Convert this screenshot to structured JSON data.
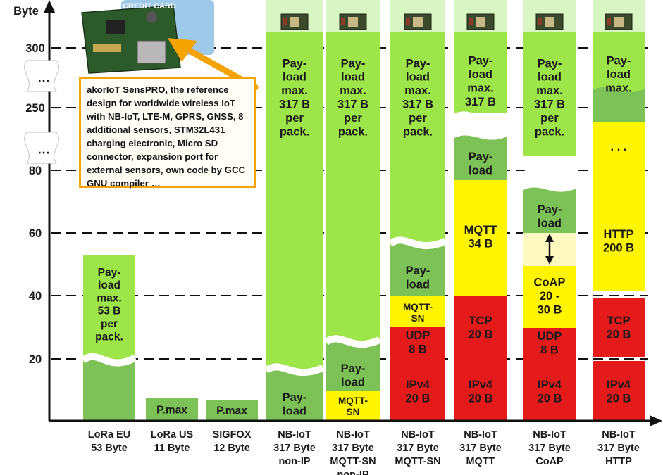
{
  "chart_data": {
    "type": "bar",
    "ylabel": "Byte",
    "y_ticks": [
      "300",
      "250",
      "80",
      "60",
      "40",
      "20"
    ],
    "break_marker": "…",
    "image_label": "CREDIT CARD",
    "callout": "akorIoT SensPRO, the reference design for worldwide wireless IoT with NB-IoT, LTE-M, GPRS, GNSS, 8 additional sensors, STM32L431 charging electronic, Micro SD connector, expansion port for external sensors, own code by GCC GNU compiler …",
    "categories": [
      {
        "name": "LoRa EU",
        "size": "53 Byte"
      },
      {
        "name": "LoRa US",
        "size": "11 Byte"
      },
      {
        "name": "SIGFOX",
        "size": "12 Byte"
      },
      {
        "name": "NB-IoT",
        "size": "317 Byte",
        "variant": "non-IP"
      },
      {
        "name": "NB-IoT",
        "size": "317 Byte",
        "variant": "MQTT-SN non-IP"
      },
      {
        "name": "NB-IoT",
        "size": "317 Byte",
        "variant": "MQTT-SN"
      },
      {
        "name": "NB-IoT",
        "size": "317 Byte",
        "variant": "MQTT"
      },
      {
        "name": "NB-IoT",
        "size": "317 Byte",
        "variant": "CoAP"
      },
      {
        "name": "NB-IoT",
        "size": "317 Byte",
        "variant": "HTTP"
      }
    ],
    "segments": {
      "payload_max_53": "Pay-\nload\nmax.\n53 B\nper\npack.",
      "pmax": "P.max",
      "payload_max_317": "Pay-\nload\nmax.\n317 B\nper\npack.",
      "payload": "Pay-\nload",
      "mqtt_sn": "MQTT-\nSN",
      "ipv4": "IPv4\n20 B",
      "udp": "UDP\n8 B",
      "tcp": "TCP\n20 B",
      "mqtt": "MQTT\n34 B",
      "coap": "CoAP\n20 -\n30 B",
      "http": "HTTP\n200 B",
      "ellipsis": ". . ."
    },
    "stacks": [
      [
        {
          "seg": "payload_max_53",
          "bytes": 53
        }
      ],
      [
        {
          "seg": "pmax",
          "bytes": 11
        }
      ],
      [
        {
          "seg": "pmax",
          "bytes": 12
        }
      ],
      [
        {
          "seg": "payload_max_317",
          "bytes": 317
        }
      ],
      [
        {
          "seg": "mqtt_sn",
          "bytes": 7
        },
        {
          "seg": "payload",
          "bytes": 310
        }
      ],
      [
        {
          "seg": "ipv4",
          "bytes": 20
        },
        {
          "seg": "udp",
          "bytes": 8
        },
        {
          "seg": "mqtt_sn",
          "bytes": 7
        },
        {
          "seg": "payload",
          "bytes": 282
        }
      ],
      [
        {
          "seg": "ipv4",
          "bytes": 20
        },
        {
          "seg": "tcp",
          "bytes": 20
        },
        {
          "seg": "mqtt",
          "bytes": 34
        },
        {
          "seg": "payload",
          "bytes": 243
        }
      ],
      [
        {
          "seg": "ipv4",
          "bytes": 20
        },
        {
          "seg": "udp",
          "bytes": 8
        },
        {
          "seg": "coap",
          "bytes_range": [
            20,
            30
          ]
        },
        {
          "seg": "payload",
          "bytes_range": [
            259,
            269
          ]
        }
      ],
      [
        {
          "seg": "ipv4",
          "bytes": 20
        },
        {
          "seg": "tcp",
          "bytes": 20
        },
        {
          "seg": "http",
          "bytes": 200
        },
        {
          "seg": "payload",
          "bytes": 77
        }
      ]
    ],
    "colors": {
      "payload": "#9ee54a",
      "payload_dark": "#7cc257",
      "payload_light": "#d9f5c4",
      "protocol": "#fff500",
      "coap_range": "#fff8c0",
      "transport": "#e51b1b",
      "callout_border": "#f5a300"
    }
  }
}
